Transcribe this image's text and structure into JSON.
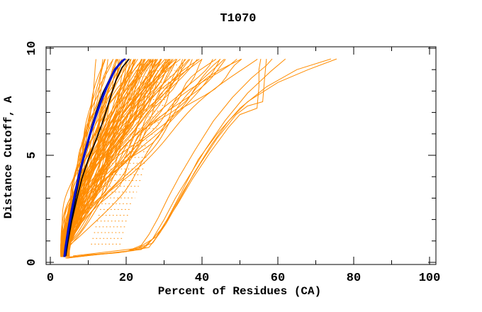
{
  "chart_data": {
    "type": "line",
    "title": "T1070",
    "xlabel": "Percent of Residues (CA)",
    "ylabel": "Distance Cutoff, A",
    "xlim": [
      0,
      100
    ],
    "ylim": [
      0,
      10
    ],
    "x_ticks_major": [
      0,
      20,
      40,
      60,
      80,
      100
    ],
    "x_ticks_minor": [
      10,
      30,
      50,
      70,
      90
    ],
    "y_ticks_major": [
      0,
      5,
      10
    ],
    "y_ticks_minor": [
      1,
      2,
      3,
      4,
      6,
      7,
      8,
      9
    ],
    "grid": false,
    "legend": false,
    "colors": {
      "models": "#ff8c00",
      "highlight_black": "#000000",
      "highlight_blue": "#0011cc",
      "axis": "#000000",
      "background": "#ffffff"
    },
    "description": "Accuracy curves for target T1070: percent of CA residues (x) under each distance cutoff in Angstroms (y). Orange = all server models; black and blue = highlighted models reaching ~20% at 9.5 A cutoff; outlier orange models reach 55-76%.",
    "cutoff_range": [
      0.3,
      9.5
    ],
    "orange_models_note": "Each entry = [percent_at_lowest_cutoff, percent_at_9.5A_cutoff, shape_exponent] for one model curve.",
    "orange_models": [
      [
        2.8,
        12.5,
        0.85
      ],
      [
        3.1,
        13.5,
        1.0
      ],
      [
        3.4,
        14,
        1.15
      ],
      [
        3.7,
        15,
        1.3
      ],
      [
        4.0,
        15.5,
        1.45
      ],
      [
        4.3,
        16,
        1.6
      ],
      [
        4.6,
        16.5,
        1.75
      ],
      [
        4.9,
        17,
        1.1
      ],
      [
        2.8,
        17.5,
        0.95
      ],
      [
        3.1,
        18,
        1.25
      ],
      [
        3.4,
        18,
        0.85
      ],
      [
        3.7,
        18.5,
        1.0
      ],
      [
        4.0,
        19,
        1.15
      ],
      [
        4.3,
        19,
        1.3
      ],
      [
        4.6,
        19.5,
        1.45
      ],
      [
        4.9,
        20,
        1.6
      ],
      [
        2.8,
        20,
        1.75
      ],
      [
        3.1,
        20.5,
        1.1
      ],
      [
        3.4,
        21,
        0.95
      ],
      [
        3.7,
        21,
        1.25
      ],
      [
        4.0,
        21.5,
        0.85
      ],
      [
        4.3,
        22,
        1.0
      ],
      [
        4.6,
        22,
        1.15
      ],
      [
        4.9,
        22.5,
        1.3
      ],
      [
        2.8,
        23,
        1.45
      ],
      [
        3.1,
        23,
        1.6
      ],
      [
        3.4,
        23.5,
        1.75
      ],
      [
        3.7,
        24,
        1.1
      ],
      [
        4.0,
        24,
        0.95
      ],
      [
        4.3,
        24.5,
        1.25
      ],
      [
        4.6,
        25,
        0.85
      ],
      [
        4.9,
        25,
        1.0
      ],
      [
        2.8,
        25.5,
        1.15
      ],
      [
        3.1,
        26,
        1.3
      ],
      [
        3.4,
        26,
        1.45
      ],
      [
        3.7,
        26.5,
        1.6
      ],
      [
        4.0,
        27,
        1.75
      ],
      [
        4.3,
        27,
        1.1
      ],
      [
        4.6,
        27.5,
        0.95
      ],
      [
        4.9,
        28,
        1.25
      ],
      [
        2.8,
        28,
        0.85
      ],
      [
        3.1,
        28.5,
        1.0
      ],
      [
        3.4,
        29,
        1.15
      ],
      [
        3.7,
        29,
        1.3
      ],
      [
        4.0,
        29.5,
        1.45
      ],
      [
        4.3,
        30,
        1.6
      ],
      [
        4.6,
        30,
        1.75
      ],
      [
        4.9,
        30.5,
        1.1
      ],
      [
        2.8,
        31,
        0.95
      ],
      [
        3.1,
        31,
        1.25
      ],
      [
        3.4,
        31.5,
        0.85
      ],
      [
        3.7,
        32,
        1.0
      ],
      [
        4.0,
        32,
        1.15
      ],
      [
        4.3,
        32.5,
        1.3
      ],
      [
        4.6,
        33,
        1.45
      ],
      [
        4.9,
        33.5,
        1.6
      ],
      [
        2.8,
        34,
        1.75
      ],
      [
        3.1,
        34.5,
        1.1
      ],
      [
        3.4,
        35,
        0.95
      ],
      [
        3.7,
        35.5,
        1.25
      ],
      [
        4.0,
        36,
        0.85
      ],
      [
        4.3,
        36.5,
        1.0
      ],
      [
        4.6,
        37,
        1.15
      ],
      [
        4.9,
        38,
        1.3
      ],
      [
        2.8,
        38.5,
        1.45
      ],
      [
        3.1,
        39,
        1.6
      ],
      [
        3.4,
        40,
        1.75
      ],
      [
        3.7,
        41,
        1.1
      ],
      [
        4.0,
        42,
        0.95
      ],
      [
        4.3,
        43,
        1.25
      ],
      [
        4.6,
        44,
        0.85
      ],
      [
        4.9,
        45,
        1.0
      ],
      [
        2.8,
        46,
        1.15
      ],
      [
        3.1,
        47,
        1.3
      ],
      [
        3.4,
        48,
        1.45
      ],
      [
        3.7,
        50,
        1.6
      ],
      [
        4.0,
        52,
        1.35
      ],
      [
        4.3,
        54,
        1.2
      ],
      [
        3.0,
        22.8,
        1.15
      ],
      [
        3.4,
        24.2,
        1.3
      ],
      [
        3.8,
        25.8,
        1.05
      ],
      [
        4.2,
        27.2,
        1.45
      ],
      [
        2.9,
        28.8,
        1.2
      ],
      [
        3.3,
        30.2,
        1.0
      ],
      [
        3.7,
        31.8,
        1.35
      ],
      [
        4.1,
        33.2,
        1.15
      ],
      [
        3.1,
        26.4,
        1.55
      ],
      [
        3.5,
        29.6,
        0.95
      ]
    ],
    "orange_outliers_note": "Each entry = list of [percent, cutoff_A] points for a poor-model curve on the right side.",
    "orange_outliers": [
      [
        [
          4,
          0.2
        ],
        [
          10,
          0.35
        ],
        [
          20,
          0.5
        ],
        [
          24,
          0.8
        ],
        [
          26,
          1.3
        ],
        [
          28.5,
          2.1
        ],
        [
          31,
          3
        ],
        [
          34,
          4
        ],
        [
          38,
          5.2
        ],
        [
          43,
          6.6
        ],
        [
          48,
          7.7
        ],
        [
          53,
          8.6
        ],
        [
          57,
          9.2
        ],
        [
          58.5,
          9.5
        ]
      ],
      [
        [
          4.5,
          0.2
        ],
        [
          14,
          0.4
        ],
        [
          24,
          0.6
        ],
        [
          27,
          1.1
        ],
        [
          30,
          2
        ],
        [
          33,
          3
        ],
        [
          36.5,
          4
        ],
        [
          41,
          5.3
        ],
        [
          46,
          6.6
        ],
        [
          52,
          7.9
        ],
        [
          58,
          8.9
        ],
        [
          62,
          9.5
        ]
      ],
      [
        [
          5,
          0.25
        ],
        [
          18,
          0.45
        ],
        [
          26,
          0.7
        ],
        [
          29,
          1.4
        ],
        [
          32,
          2.4
        ],
        [
          35.5,
          3.6
        ],
        [
          39,
          4.8
        ],
        [
          44,
          6
        ],
        [
          50,
          7.2
        ],
        [
          57,
          8.2
        ],
        [
          65,
          9
        ],
        [
          74,
          9.5
        ]
      ],
      [
        [
          5.5,
          0.25
        ],
        [
          20,
          0.5
        ],
        [
          27,
          0.9
        ],
        [
          30.5,
          1.8
        ],
        [
          34,
          2.9
        ],
        [
          38,
          4.2
        ],
        [
          42.5,
          5.5
        ],
        [
          47,
          6.6
        ],
        [
          52,
          7.5
        ],
        [
          60,
          8.4
        ],
        [
          68,
          9
        ],
        [
          75.5,
          9.5
        ]
      ],
      [
        [
          4.2,
          0.2
        ],
        [
          22,
          0.55
        ],
        [
          28,
          1.2
        ],
        [
          31.5,
          2.2
        ],
        [
          35,
          3.3
        ],
        [
          39.5,
          4.6
        ],
        [
          44,
          5.8
        ],
        [
          49,
          6.9
        ],
        [
          52,
          7.3
        ],
        [
          56,
          7.5
        ],
        [
          56.5,
          8.6
        ],
        [
          57,
          9.5
        ]
      ],
      [
        [
          6,
          0.3
        ],
        [
          25,
          0.7
        ],
        [
          29.5,
          1.6
        ],
        [
          33.5,
          2.7
        ],
        [
          37.5,
          3.9
        ],
        [
          42,
          5.1
        ],
        [
          47,
          6.3
        ],
        [
          50,
          6.9
        ],
        [
          54.5,
          7.2
        ],
        [
          55,
          8.2
        ],
        [
          55,
          9.0
        ],
        [
          55.5,
          9.5
        ]
      ]
    ],
    "black_models": [
      [
        [
          3.9,
          0.3
        ],
        [
          4.3,
          0.8
        ],
        [
          5.2,
          1.7
        ],
        [
          6.2,
          2.6
        ],
        [
          7.2,
          3.5
        ],
        [
          8.1,
          4.3
        ],
        [
          9.0,
          5.0
        ],
        [
          9.8,
          5.6
        ],
        [
          10.8,
          6.3
        ],
        [
          12.2,
          7.1
        ],
        [
          13.8,
          7.9
        ],
        [
          15.8,
          8.6
        ],
        [
          18.0,
          9.2
        ],
        [
          19.8,
          9.5
        ]
      ],
      [
        [
          4.1,
          0.3
        ],
        [
          4.6,
          0.9
        ],
        [
          5.6,
          1.9
        ],
        [
          6.9,
          2.9
        ],
        [
          8.3,
          3.9
        ],
        [
          10.0,
          4.8
        ],
        [
          11.8,
          5.6
        ],
        [
          13.5,
          6.4
        ],
        [
          14.8,
          7.1
        ],
        [
          16.0,
          7.8
        ],
        [
          17.3,
          8.5
        ],
        [
          18.9,
          9.1
        ],
        [
          20.8,
          9.5
        ]
      ],
      [
        [
          3.8,
          0.25
        ],
        [
          4.2,
          0.7
        ],
        [
          4.9,
          1.5
        ],
        [
          5.8,
          2.4
        ],
        [
          6.7,
          3.2
        ],
        [
          7.5,
          3.9
        ],
        [
          8.6,
          4.7
        ],
        [
          9.4,
          5.2
        ],
        [
          9.9,
          5.5
        ],
        [
          10.6,
          6.0
        ],
        [
          11.9,
          6.9
        ],
        [
          13.4,
          7.7
        ],
        [
          15.2,
          8.4
        ],
        [
          17.2,
          9.0
        ],
        [
          19.2,
          9.45
        ]
      ]
    ],
    "blue_models": [
      [
        [
          3.6,
          0.25
        ],
        [
          3.9,
          0.7
        ],
        [
          4.6,
          1.5
        ],
        [
          5.5,
          2.4
        ],
        [
          6.5,
          3.3
        ],
        [
          7.6,
          4.2
        ],
        [
          8.8,
          5.0
        ],
        [
          10.2,
          5.9
        ],
        [
          11.6,
          6.7
        ],
        [
          13.2,
          7.5
        ],
        [
          15.0,
          8.3
        ],
        [
          16.9,
          9.0
        ],
        [
          18.8,
          9.4
        ],
        [
          19.6,
          9.5
        ]
      ],
      [
        [
          3.85,
          0.25
        ],
        [
          4.15,
          0.7
        ],
        [
          4.85,
          1.5
        ],
        [
          5.75,
          2.4
        ],
        [
          6.75,
          3.3
        ],
        [
          7.85,
          4.2
        ],
        [
          9.05,
          5.0
        ],
        [
          10.45,
          5.9
        ],
        [
          11.85,
          6.7
        ],
        [
          13.45,
          7.5
        ],
        [
          15.25,
          8.3
        ],
        [
          17.15,
          9.0
        ],
        [
          19.05,
          9.4
        ],
        [
          19.85,
          9.5
        ]
      ]
    ],
    "texture_band": {
      "note": "Dotted horizontal step-texture inside the dense bundle.",
      "y_min": 0.85,
      "y_max": 9.35,
      "y_step": 0.27,
      "x_left": [
        9.5,
        1.45
      ],
      "x_right": [
        17.0,
        1.78
      ],
      "dash": [
        1.6,
        3.4
      ]
    }
  }
}
